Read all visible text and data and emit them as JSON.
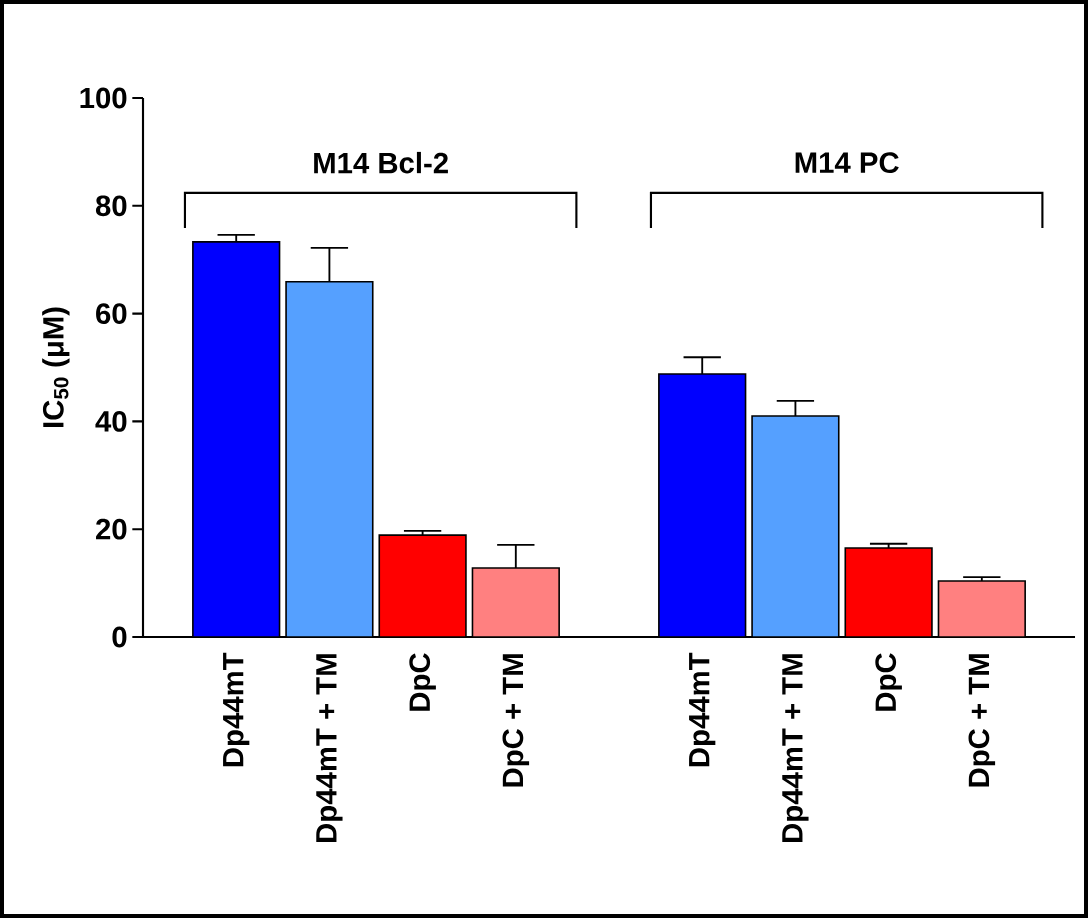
{
  "chart_data": {
    "type": "bar",
    "ylabel": "IC$_{50}$ (μM)",
    "categories": [
      "Dp44mT",
      "Dp44mT + TM",
      "DpC",
      "DpC + TM",
      null,
      "Dp44mT",
      "Dp44mT + TM",
      "DpC",
      "DpC + TM"
    ],
    "values": [
      73.3,
      65.9,
      18.9,
      12.8,
      null,
      48.8,
      41.0,
      16.5,
      10.4
    ],
    "errors": [
      [
        73.3,
        74.6
      ],
      [
        65.9,
        72.2
      ],
      [
        18.9,
        19.7
      ],
      [
        12.8,
        17.1
      ],
      null,
      [
        48.8,
        51.9
      ],
      [
        41.0,
        43.8
      ],
      [
        16.5,
        17.3
      ],
      [
        10.4,
        11.1
      ]
    ],
    "colors": [
      "#0000ff",
      "#55a0ff",
      "#ff0000",
      "#ff8080",
      "#000000",
      "#0000ff",
      "#55a0ff",
      "#ff0000",
      "#ff8080"
    ],
    "ylim": [
      0,
      100
    ],
    "yticks": [
      0,
      20,
      40,
      60,
      80,
      100
    ],
    "grid": false,
    "annotations": [
      "M14 Bcl-2",
      "M14 PC"
    ]
  }
}
